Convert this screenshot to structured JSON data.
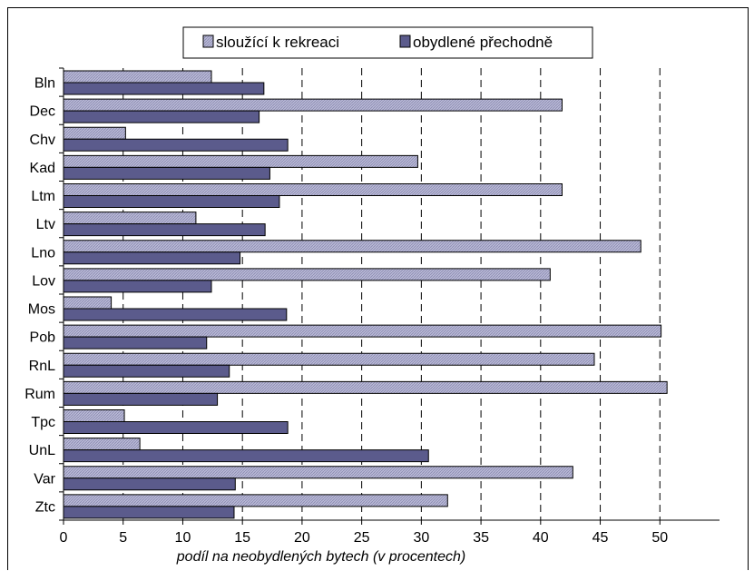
{
  "chart_data": {
    "type": "bar",
    "orientation": "horizontal",
    "title": "",
    "xlabel": "podíl na neobydlených bytech (v procentech)",
    "ylabel": "",
    "xlim": [
      0,
      55
    ],
    "x_ticks": [
      0,
      5,
      10,
      15,
      20,
      25,
      30,
      35,
      40,
      45,
      50
    ],
    "grid": "vertical-dashed",
    "legend_position": "top",
    "categories": [
      "Bln",
      "Dec",
      "Chv",
      "Kad",
      "Ltm",
      "Ltv",
      "Lno",
      "Lov",
      "Mos",
      "Pob",
      "RnL",
      "Rum",
      "Tpc",
      "UnL",
      "Var",
      "Ztc"
    ],
    "series": [
      {
        "name": "sloužící k rekreaci",
        "color": "#a8a8c8",
        "pattern": "hatched",
        "values": [
          12.4,
          41.8,
          5.2,
          29.7,
          41.8,
          11.1,
          48.4,
          40.8,
          4.0,
          50.1,
          44.5,
          50.6,
          5.1,
          6.4,
          42.7,
          32.2
        ]
      },
      {
        "name": "obydlené přechodně",
        "color": "#5b5b8c",
        "pattern": "solid",
        "values": [
          16.8,
          16.4,
          18.8,
          17.3,
          18.1,
          16.9,
          14.8,
          12.4,
          18.7,
          12.0,
          13.9,
          12.9,
          18.8,
          30.6,
          14.4,
          14.3
        ]
      }
    ]
  }
}
